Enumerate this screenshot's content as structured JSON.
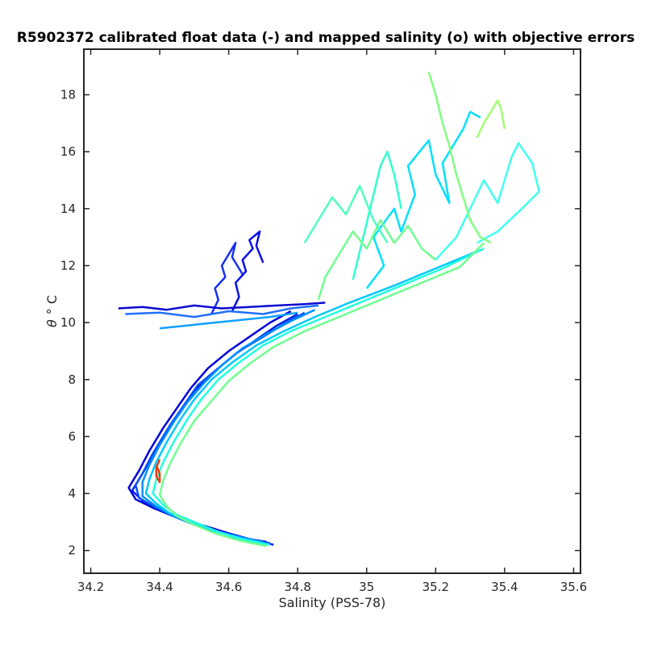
{
  "chart_data": {
    "type": "line",
    "title": "R5902372 calibrated float data (-) and mapped salinity (o) with objective errors",
    "xlabel": "Salinity (PSS-78)",
    "ylabel_symbol": "θ",
    "ylabel_unit": "° C",
    "xlim": [
      34.18,
      35.62
    ],
    "ylim": [
      1.2,
      19.6
    ],
    "xticks": [
      "34.2",
      "34.4",
      "34.6",
      "34.8",
      "35",
      "35.2",
      "35.4",
      "35.6"
    ],
    "yticks": [
      "2",
      "4",
      "6",
      "8",
      "10",
      "12",
      "14",
      "16",
      "18"
    ],
    "grid": false,
    "colormap": "jet",
    "series": [
      {
        "color": "#0000d8",
        "x": [
          34.71,
          34.66,
          34.6,
          34.52,
          34.44,
          34.38,
          34.33,
          34.31,
          34.34,
          34.37,
          34.41,
          34.45,
          34.49,
          34.54,
          34.6,
          34.66,
          34.72,
          34.78
        ],
        "y": [
          2.3,
          2.4,
          2.6,
          2.9,
          3.2,
          3.5,
          3.8,
          4.2,
          4.8,
          5.5,
          6.3,
          7.0,
          7.7,
          8.4,
          9.0,
          9.5,
          10.0,
          10.4
        ]
      },
      {
        "color": "#0020f0",
        "x": [
          34.73,
          34.68,
          34.61,
          34.54,
          34.46,
          34.4,
          34.35,
          34.32,
          34.35,
          34.38,
          34.42,
          34.46,
          34.5,
          34.56,
          34.62,
          34.68,
          34.74,
          34.8
        ],
        "y": [
          2.2,
          2.35,
          2.5,
          2.8,
          3.1,
          3.45,
          3.75,
          4.1,
          4.7,
          5.4,
          6.2,
          6.9,
          7.6,
          8.3,
          8.9,
          9.4,
          9.9,
          10.3
        ]
      },
      {
        "color": "#0050ff",
        "x": [
          34.72,
          34.66,
          34.59,
          34.52,
          34.45,
          34.39,
          34.34,
          34.33,
          34.36,
          34.39,
          34.43,
          34.47,
          34.51,
          34.57,
          34.63,
          34.7,
          34.76,
          34.82
        ],
        "y": [
          2.25,
          2.4,
          2.6,
          2.85,
          3.15,
          3.5,
          3.85,
          4.3,
          4.9,
          5.6,
          6.4,
          7.1,
          7.8,
          8.4,
          9.0,
          9.5,
          9.95,
          10.35
        ]
      },
      {
        "color": "#0090ff",
        "x": [
          34.7,
          34.64,
          34.57,
          34.5,
          34.44,
          34.39,
          34.35,
          34.35,
          34.37,
          34.4,
          34.44,
          34.48,
          34.53,
          34.58,
          34.64,
          34.71,
          34.78,
          34.85
        ],
        "y": [
          2.3,
          2.45,
          2.65,
          2.9,
          3.2,
          3.55,
          3.9,
          4.4,
          5.0,
          5.7,
          6.5,
          7.2,
          7.9,
          8.5,
          9.1,
          9.6,
          10.05,
          10.45
        ]
      },
      {
        "color": "#00c8ff",
        "x": [
          34.69,
          34.62,
          34.56,
          34.49,
          34.43,
          34.39,
          34.36,
          34.37,
          34.39,
          34.42,
          34.46,
          34.5,
          34.55,
          34.61,
          34.68,
          34.76,
          34.85,
          34.95,
          35.08,
          35.2,
          35.32
        ],
        "y": [
          2.25,
          2.45,
          2.7,
          3.0,
          3.3,
          3.65,
          4.0,
          4.5,
          5.1,
          5.8,
          6.6,
          7.3,
          8.0,
          8.6,
          9.2,
          9.7,
          10.2,
          10.7,
          11.3,
          11.9,
          12.5
        ]
      },
      {
        "color": "#20ffe0",
        "x": [
          34.72,
          34.64,
          34.57,
          34.51,
          34.45,
          34.41,
          34.38,
          34.39,
          34.41,
          34.44,
          34.48,
          34.52,
          34.57,
          34.63,
          34.7,
          34.78,
          34.88,
          34.98,
          35.1,
          35.22,
          35.34
        ],
        "y": [
          2.2,
          2.4,
          2.65,
          2.95,
          3.25,
          3.6,
          4.0,
          4.5,
          5.1,
          5.8,
          6.6,
          7.3,
          8.0,
          8.6,
          9.2,
          9.7,
          10.2,
          10.7,
          11.3,
          11.9,
          12.6
        ]
      },
      {
        "color": "#70ff90",
        "x": [
          34.71,
          34.63,
          34.56,
          34.5,
          34.45,
          34.42,
          34.4,
          34.41,
          34.43,
          34.46,
          34.5,
          34.55,
          34.6,
          34.66,
          34.73,
          34.82,
          34.92,
          35.03,
          35.15,
          35.27,
          35.34
        ],
        "y": [
          2.15,
          2.35,
          2.6,
          2.9,
          3.2,
          3.55,
          3.95,
          4.45,
          5.05,
          5.75,
          6.55,
          7.25,
          7.95,
          8.55,
          9.15,
          9.7,
          10.2,
          10.75,
          11.35,
          11.95,
          12.8
        ]
      },
      {
        "color": "#0a10e0",
        "x": [
          34.61,
          34.63,
          34.62,
          34.65,
          34.64,
          34.67,
          34.66,
          34.69,
          34.68,
          34.7
        ],
        "y": [
          10.4,
          10.9,
          11.4,
          11.8,
          12.2,
          12.6,
          12.9,
          13.2,
          12.7,
          12.1
        ]
      },
      {
        "color": "#1530f5",
        "x": [
          34.55,
          34.57,
          34.56,
          34.59,
          34.58,
          34.6,
          34.62,
          34.61,
          34.64
        ],
        "y": [
          10.3,
          10.8,
          11.2,
          11.6,
          12.0,
          12.4,
          12.8,
          12.3,
          11.7
        ]
      },
      {
        "color": "#0a0ad0",
        "x": [
          34.28,
          34.35,
          34.42,
          34.5,
          34.58,
          34.66,
          34.74,
          34.82,
          34.88
        ],
        "y": [
          10.5,
          10.55,
          10.45,
          10.6,
          10.5,
          10.55,
          10.6,
          10.65,
          10.7
        ]
      },
      {
        "color": "#2070ff",
        "x": [
          34.3,
          34.4,
          34.5,
          34.6,
          34.7,
          34.78,
          34.86
        ],
        "y": [
          10.3,
          10.35,
          10.2,
          10.4,
          10.3,
          10.5,
          10.6
        ]
      },
      {
        "color": "#10a0ff",
        "x": [
          34.4,
          34.48,
          34.56,
          34.64,
          34.72,
          34.8
        ],
        "y": [
          9.8,
          9.9,
          10.0,
          10.1,
          10.2,
          10.35
        ]
      },
      {
        "color": "#00e0ff",
        "x": [
          35.0,
          35.05,
          35.02,
          35.08,
          35.1,
          35.14,
          35.12,
          35.18,
          35.2,
          35.24,
          35.22,
          35.28,
          35.3,
          35.33
        ],
        "y": [
          11.2,
          12.0,
          13.0,
          14.0,
          13.2,
          14.5,
          15.5,
          16.4,
          15.2,
          14.2,
          15.6,
          16.8,
          17.4,
          17.2
        ]
      },
      {
        "color": "#40fff0",
        "x": [
          35.2,
          35.26,
          35.3,
          35.34,
          35.38,
          35.42,
          35.44,
          35.48,
          35.5,
          35.45,
          35.38,
          35.32
        ],
        "y": [
          12.2,
          13.0,
          14.0,
          15.0,
          14.2,
          15.8,
          16.3,
          15.6,
          14.6,
          14.0,
          13.2,
          12.8
        ]
      },
      {
        "color": "#30ffd0",
        "x": [
          34.96,
          34.98,
          35.0,
          35.02,
          35.04,
          35.06,
          35.08,
          35.1
        ],
        "y": [
          11.5,
          12.5,
          13.5,
          14.5,
          15.5,
          16.0,
          15.2,
          14.0
        ]
      },
      {
        "color": "#80ff80",
        "x": [
          35.18,
          35.2,
          35.22,
          35.24,
          35.26,
          35.28,
          35.3,
          35.33,
          35.36
        ],
        "y": [
          18.8,
          18.0,
          17.0,
          16.2,
          15.2,
          14.4,
          13.6,
          13.0,
          12.8
        ]
      },
      {
        "color": "#a0ff70",
        "x": [
          35.32,
          35.34,
          35.36,
          35.38,
          35.39,
          35.4
        ],
        "y": [
          16.5,
          17.0,
          17.4,
          17.8,
          17.5,
          16.8
        ]
      },
      {
        "color": "#70ff90",
        "x": [
          34.86,
          34.88,
          34.92,
          34.96,
          35.0,
          35.04,
          35.08,
          35.12,
          35.16,
          35.2
        ],
        "y": [
          10.8,
          11.6,
          12.4,
          13.2,
          12.6,
          13.6,
          12.8,
          13.4,
          12.6,
          12.2
        ]
      },
      {
        "color": "#50ffc0",
        "x": [
          34.82,
          34.86,
          34.9,
          34.94,
          34.98,
          35.02,
          35.06
        ],
        "y": [
          12.8,
          13.6,
          14.4,
          13.8,
          14.8,
          13.6,
          12.8
        ]
      },
      {
        "color": "#ee3f10",
        "x": [
          34.4,
          34.39,
          34.39,
          34.4,
          34.4,
          34.39
        ],
        "y": [
          5.2,
          4.9,
          4.6,
          4.4,
          4.7,
          5.0
        ]
      }
    ]
  }
}
